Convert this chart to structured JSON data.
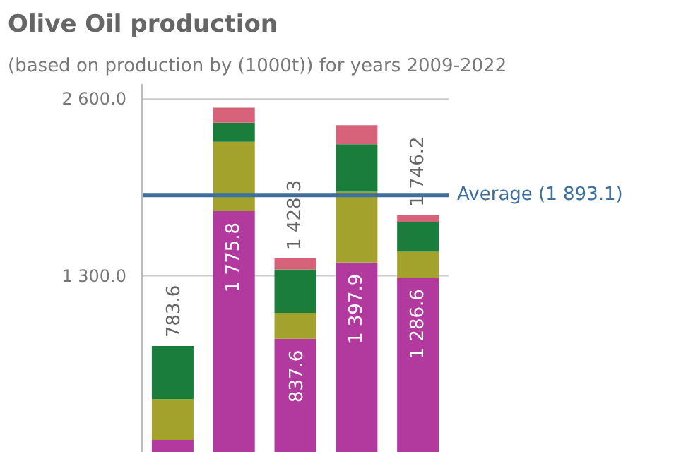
{
  "chart_data": {
    "type": "bar",
    "title": "Olive Oil production",
    "subtitle": "(based on production by (1000t)) for years 2009-2022",
    "categories": [
      null,
      null,
      null,
      null,
      null
    ],
    "stacked": true,
    "series": [
      {
        "color": "#b23a9e",
        "values": [
          93.6,
          1775.8,
          837.6,
          1397.9,
          1286.6
        ],
        "value_labels": [
          null,
          "1 775.8",
          "837.6",
          "1 397.9",
          "1 286.6"
        ]
      },
      {
        "color": "#a2a22c",
        "values": [
          300,
          510,
          190,
          520,
          190
        ]
      },
      {
        "color": "#1b7d3b",
        "values": [
          390,
          140,
          320,
          350,
          220
        ]
      },
      {
        "color": "#d6637a",
        "values": [
          0,
          110,
          80.7,
          140,
          49.6
        ]
      }
    ],
    "totals": [
      "783.6",
      null,
      "1 428.3",
      null,
      "1 746.2"
    ],
    "ylim": [
      0,
      2710
    ],
    "yticks": [
      {
        "value": 1300,
        "label": "1 300.0"
      },
      {
        "value": 2600,
        "label": "2 600.0"
      }
    ],
    "ref_lines": [
      {
        "axis": "y",
        "value": 1893.1,
        "label": "Average (1 893.1)",
        "color": "#3c6e9e"
      }
    ],
    "grid": "y",
    "tick_labels": "y"
  }
}
